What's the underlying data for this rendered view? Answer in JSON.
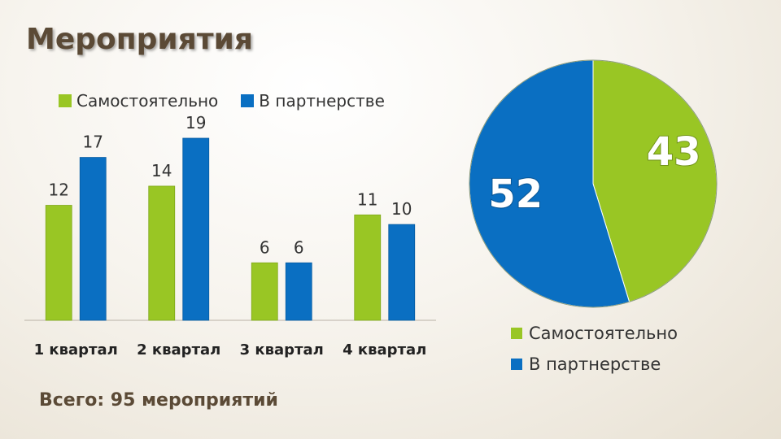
{
  "slide": {
    "title": "Мероприятия",
    "total_text": "Всего: 95 мероприятий"
  },
  "colors": {
    "green": "#99c624",
    "blue": "#0a6fc2"
  },
  "chart_data": [
    {
      "type": "bar",
      "categories": [
        "1 квартал",
        "2 квартал",
        "3 квартал",
        "4 квартал"
      ],
      "series": [
        {
          "name": "Самостоятельно",
          "values": [
            12,
            14,
            6,
            11
          ]
        },
        {
          "name": "В партнерстве",
          "values": [
            17,
            19,
            6,
            10
          ]
        }
      ],
      "legend": "top",
      "ylim": [
        0,
        19
      ],
      "grid": false
    },
    {
      "type": "pie",
      "slices": [
        {
          "name": "Самостоятельно",
          "value": 43
        },
        {
          "name": "В партнерстве",
          "value": 52
        }
      ],
      "legend": "bottom-right"
    }
  ]
}
